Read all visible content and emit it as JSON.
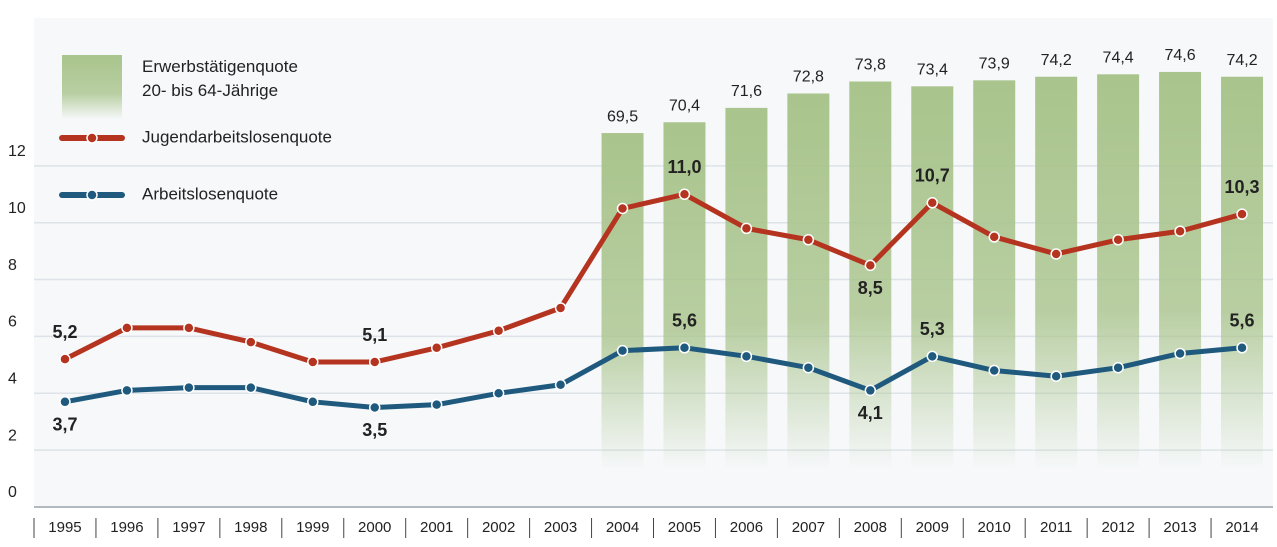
{
  "chart_data": {
    "type": "bar-line",
    "categories": [
      "1995",
      "1996",
      "1997",
      "1998",
      "1999",
      "2000",
      "2001",
      "2002",
      "2003",
      "2004",
      "2005",
      "2006",
      "2007",
      "2008",
      "2009",
      "2010",
      "2011",
      "2012",
      "2013",
      "2014"
    ],
    "ylim": [
      0,
      17.2
    ],
    "yticks": [
      0,
      2,
      4,
      6,
      8,
      10,
      12
    ],
    "y2lim": [
      38.3,
      79.1
    ],
    "grid": true,
    "series": [
      {
        "name": "Erwerbstätigenquote\n20- bis 64-Jährige",
        "type": "bar",
        "axis": "y2",
        "color": "#a9c48c",
        "values": [
          null,
          null,
          null,
          null,
          null,
          null,
          null,
          null,
          null,
          69.5,
          70.4,
          71.6,
          72.8,
          73.8,
          73.4,
          73.9,
          74.2,
          74.4,
          74.6,
          74.2
        ],
        "value_labels": [
          null,
          null,
          null,
          null,
          null,
          null,
          null,
          null,
          null,
          "69,5",
          "70,4",
          "71,6",
          "72,8",
          "73,8",
          "73,4",
          "73,9",
          "74,2",
          "74,4",
          "74,6",
          "74,2"
        ]
      },
      {
        "name": "Jugendarbeitslosenquote",
        "type": "line",
        "color": "#b5341f",
        "values": [
          5.2,
          6.3,
          6.3,
          5.8,
          5.1,
          5.1,
          5.6,
          6.2,
          7.0,
          10.5,
          11.0,
          9.8,
          9.4,
          8.5,
          10.7,
          9.5,
          8.9,
          9.4,
          9.7,
          10.3
        ],
        "value_labels": [
          "5,2",
          null,
          null,
          null,
          null,
          "5,1",
          null,
          null,
          null,
          null,
          "11,0",
          null,
          null,
          "8,5",
          "10,7",
          null,
          null,
          null,
          null,
          "10,3"
        ]
      },
      {
        "name": "Arbeitslosenquote",
        "type": "line",
        "color": "#1f5a7e",
        "values": [
          3.7,
          4.1,
          4.2,
          4.2,
          3.7,
          3.5,
          3.6,
          4.0,
          4.3,
          5.5,
          5.6,
          5.3,
          4.9,
          4.1,
          5.3,
          4.8,
          4.6,
          4.9,
          5.4,
          5.6
        ],
        "value_labels": [
          "3,7",
          null,
          null,
          null,
          null,
          "3,5",
          null,
          null,
          null,
          null,
          "5,6",
          null,
          null,
          "4,1",
          "5,3",
          null,
          null,
          null,
          null,
          "5,6"
        ]
      }
    ]
  }
}
